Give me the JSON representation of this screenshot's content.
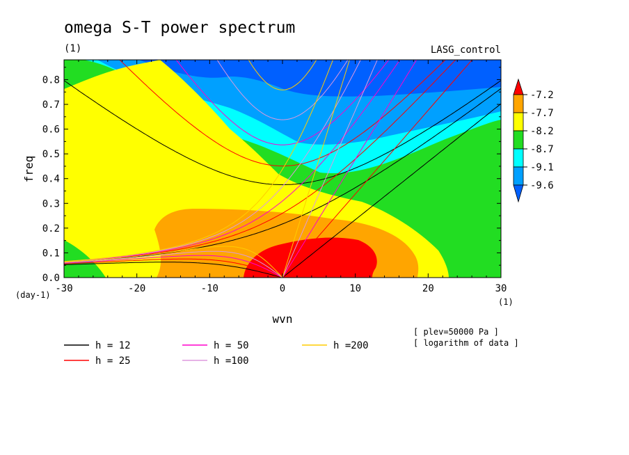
{
  "chart_data": {
    "type": "contour",
    "title": "omega S-T power spectrum",
    "subtitle_left": "(1)",
    "subtitle_right": "LASG_control",
    "xlabel": "wvn",
    "ylabel": "freq",
    "x_unit": "(1)",
    "y_unit": "(day-1)",
    "xlim": [
      -30,
      30
    ],
    "ylim": [
      0,
      0.88
    ],
    "x_ticks": [
      -30,
      -20,
      -10,
      0,
      10,
      20,
      30
    ],
    "y_ticks": [
      0,
      0.1,
      0.2,
      0.3,
      0.4,
      0.5,
      0.6,
      0.7,
      0.8
    ],
    "x_tick_labels": [
      "-30",
      "-20",
      "-10",
      "0",
      "10",
      "20",
      "30"
    ],
    "y_tick_labels": [
      "0.0",
      "0.1",
      "0.2",
      "0.3",
      "0.4",
      "0.5",
      "0.6",
      "0.7",
      "0.8"
    ],
    "colorbar": {
      "labels": [
        "-7.2",
        "-7.7",
        "-8.2",
        "-8.7",
        "-9.1",
        "-9.6"
      ],
      "colors": [
        "#ff0000",
        "#ffa500",
        "#ffff00",
        "#22dd22",
        "#00ffff",
        "#00a0ff",
        "#0060ff"
      ]
    },
    "notes": [
      "[ plev=50000 Pa ]",
      "[ logarithm of data ]"
    ],
    "dispersion_curves": [
      {
        "label": "h = 12",
        "h": 12,
        "color": "#000000"
      },
      {
        "label": "h = 25",
        "h": 25,
        "color": "#ff0000"
      },
      {
        "label": "h = 50",
        "h": 50,
        "color": "#ff00cc"
      },
      {
        "label": "h =100",
        "h": 100,
        "color": "#dd99dd"
      },
      {
        "label": "h =200",
        "h": 200,
        "color": "#ffcc00"
      }
    ],
    "contour_levels": [
      -7.2,
      -7.7,
      -8.2,
      -8.7,
      -9.1,
      -9.6
    ]
  }
}
